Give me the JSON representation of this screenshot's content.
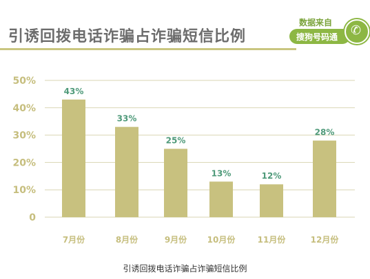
{
  "title": "引诱回拨电话诈骗占诈骗短信比例",
  "badge": {
    "source_prefix": "数据来自",
    "source_name": "搜狗号码通",
    "logo_icon": "phone-s-icon"
  },
  "caption": "引诱回拨电话诈骗占诈骗短信比例",
  "colors": {
    "bar": "#c8c17f",
    "value_label": "#4f9a7a",
    "axis_label": "#c6be7e",
    "grid": "#d9d6b3",
    "title": "#6c6c6c",
    "accent_green": "#8db744"
  },
  "chart_data": {
    "type": "bar",
    "title": "",
    "xlabel": "",
    "ylabel": "",
    "categories": [
      "7月份",
      "8月份",
      "9月份",
      "10月份",
      "11月份",
      "12月份"
    ],
    "values": [
      43,
      33,
      25,
      13,
      12,
      28
    ],
    "value_labels": [
      "43%",
      "33%",
      "25%",
      "13%",
      "12%",
      "28%"
    ],
    "ylim": [
      0,
      50
    ],
    "yticks": [
      0,
      10,
      20,
      30,
      40,
      50
    ],
    "ytick_labels": [
      "0",
      "10%",
      "20%",
      "30%",
      "40%",
      "50%"
    ],
    "grid": true,
    "legend": "none"
  }
}
